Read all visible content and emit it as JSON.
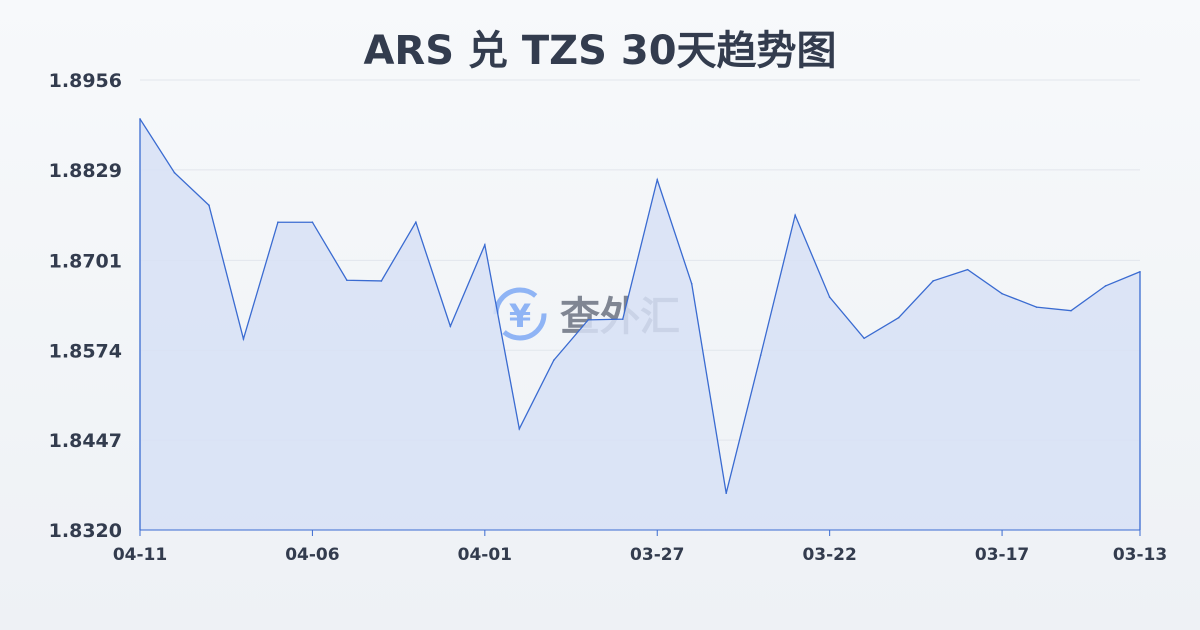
{
  "title": "ARS 兑 TZS 30天趋势图",
  "watermark": "查外汇",
  "colors": {
    "line": "#3a6bd1",
    "fill": "#d7e1f6",
    "grid": "#e2e6ec",
    "text": "#333c4e",
    "watermark_icon": "#8fb4f5"
  },
  "chart_data": {
    "type": "area",
    "title": "ARS 兑 TZS 30天趋势图",
    "xlabel": "",
    "ylabel": "",
    "ylim": [
      1.832,
      1.8956
    ],
    "yticks": [
      "1.8956",
      "1.8829",
      "1.8701",
      "1.8574",
      "1.8447",
      "1.8320"
    ],
    "xticks": [
      "04-11",
      "04-06",
      "04-01",
      "03-27",
      "03-22",
      "03-17",
      "03-13"
    ],
    "grid": true,
    "x": [
      "04-11",
      "04-10",
      "04-09",
      "04-08",
      "04-07",
      "04-06",
      "04-05",
      "04-04",
      "04-03",
      "04-02",
      "04-01",
      "03-31",
      "03-30",
      "03-29",
      "03-28",
      "03-27",
      "03-26",
      "03-25",
      "03-24",
      "03-23",
      "03-22",
      "03-21",
      "03-20",
      "03-19",
      "03-18",
      "03-17",
      "03-16",
      "03-15",
      "03-14",
      "03-13"
    ],
    "values": [
      1.8901,
      1.8825,
      1.8779,
      1.859,
      1.8755,
      1.8755,
      1.8673,
      1.8672,
      1.8755,
      1.8608,
      1.8723,
      1.8463,
      1.856,
      1.8617,
      1.8618,
      1.8815,
      1.8668,
      1.8372,
      1.8567,
      1.8765,
      1.8649,
      1.8591,
      1.862,
      1.8672,
      1.8688,
      1.8654,
      1.8635,
      1.863,
      1.8665,
      1.8685
    ]
  }
}
